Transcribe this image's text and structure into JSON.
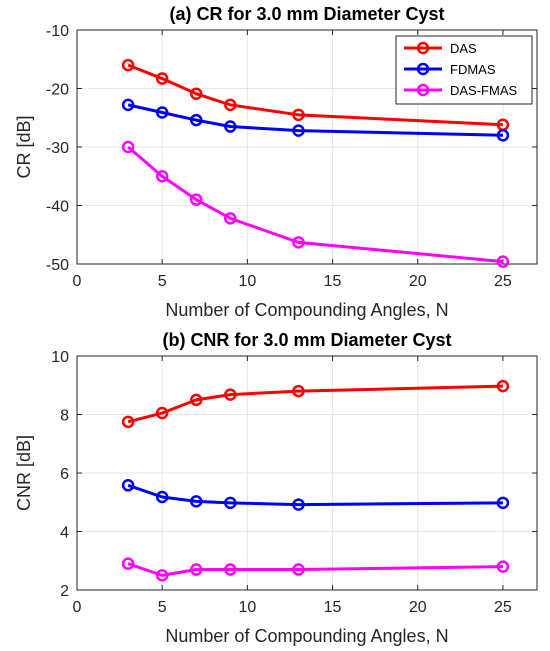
{
  "colors": {
    "DAS": "#ff0000",
    "FDMAS": "#0000ff",
    "DAS-FMAS": "#ff00ff",
    "grid": "#e6e6e6",
    "axis": "#262626"
  },
  "chart_data": [
    {
      "type": "line",
      "title": "(a) CR for 3.0 mm Diameter Cyst",
      "xlabel": "Number of Compounding Angles, N",
      "ylabel": "CR [dB]",
      "xlim": [
        0,
        27
      ],
      "ylim": [
        -50,
        -10
      ],
      "xticks": [
        0,
        5,
        10,
        15,
        20,
        25
      ],
      "yticks": [
        -50,
        -40,
        -30,
        -20,
        -10
      ],
      "grid": true,
      "legend": "top-right",
      "x": [
        3,
        5,
        7,
        9,
        13,
        25
      ],
      "series": [
        {
          "name": "DAS",
          "values": [
            -16.0,
            -18.3,
            -20.9,
            -22.8,
            -24.5,
            -26.2
          ]
        },
        {
          "name": "FDMAS",
          "values": [
            -22.8,
            -24.1,
            -25.4,
            -26.5,
            -27.2,
            -28.0
          ]
        },
        {
          "name": "DAS-FMAS",
          "values": [
            -30.0,
            -35.0,
            -39.0,
            -42.2,
            -46.3,
            -49.6
          ]
        }
      ]
    },
    {
      "type": "line",
      "title": "(b) CNR for 3.0 mm Diameter Cyst",
      "xlabel": "Number of Compounding Angles, N",
      "ylabel": "CNR [dB]",
      "xlim": [
        0,
        27
      ],
      "ylim": [
        2,
        10
      ],
      "xticks": [
        0,
        5,
        10,
        15,
        20,
        25
      ],
      "yticks": [
        2,
        4,
        6,
        8,
        10
      ],
      "grid": true,
      "x": [
        3,
        5,
        7,
        9,
        13,
        25
      ],
      "series": [
        {
          "name": "DAS",
          "values": [
            7.75,
            8.05,
            8.5,
            8.68,
            8.8,
            8.97
          ]
        },
        {
          "name": "FDMAS",
          "values": [
            5.58,
            5.18,
            5.03,
            4.98,
            4.92,
            4.98
          ]
        },
        {
          "name": "DAS-FMAS",
          "values": [
            2.9,
            2.5,
            2.7,
            2.7,
            2.7,
            2.8
          ]
        }
      ]
    }
  ]
}
